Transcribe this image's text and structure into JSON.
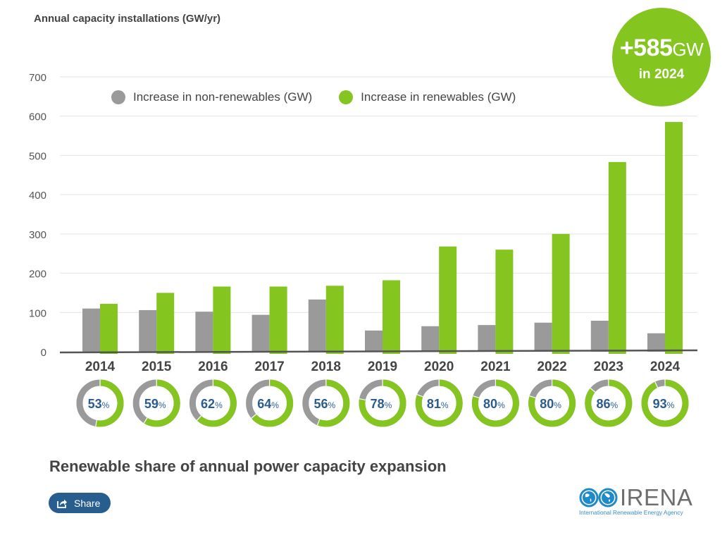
{
  "chart_data": {
    "type": "bar",
    "title": "Annual capacity installations (GW/yr)",
    "subtitle": "Renewable share of annual power capacity expansion",
    "xlabel": "",
    "ylabel": "Annual capacity installations (GW/yr)",
    "ylim": [
      0,
      700
    ],
    "yticks": [
      0,
      100,
      200,
      300,
      400,
      500,
      600,
      700
    ],
    "grid": true,
    "legend_position": "top",
    "categories": [
      "2014",
      "2015",
      "2016",
      "2017",
      "2018",
      "2019",
      "2020",
      "2021",
      "2022",
      "2023",
      "2024"
    ],
    "series": [
      {
        "name": "Increase in non-renewables (GW)",
        "color": "#9a9a9a",
        "values": [
          110,
          106,
          102,
          94,
          133,
          54,
          65,
          68,
          74,
          79,
          47
        ]
      },
      {
        "name": "Increase in renewables (GW)",
        "color": "#84c51f",
        "values": [
          122,
          150,
          166,
          166,
          168,
          182,
          268,
          260,
          300,
          483,
          585
        ]
      }
    ],
    "renewable_share_pct": [
      53,
      59,
      62,
      64,
      56,
      78,
      81,
      80,
      80,
      86,
      93
    ],
    "highlight": {
      "value": "+585",
      "unit": "GW",
      "caption": "in 2024"
    }
  },
  "legend": {
    "non_renewables": "Increase in non-renewables (GW)",
    "renewables": "Increase in renewables (GW)"
  },
  "share_button": {
    "label": "Share",
    "icon": "share-icon"
  },
  "logo": {
    "name": "IRENA",
    "tagline": "International Renewable Energy Agency"
  },
  "colors": {
    "renewable": "#84c51f",
    "non_renewable": "#9a9a9a",
    "share_text": "#2a5d8f",
    "button": "#275d8f"
  }
}
